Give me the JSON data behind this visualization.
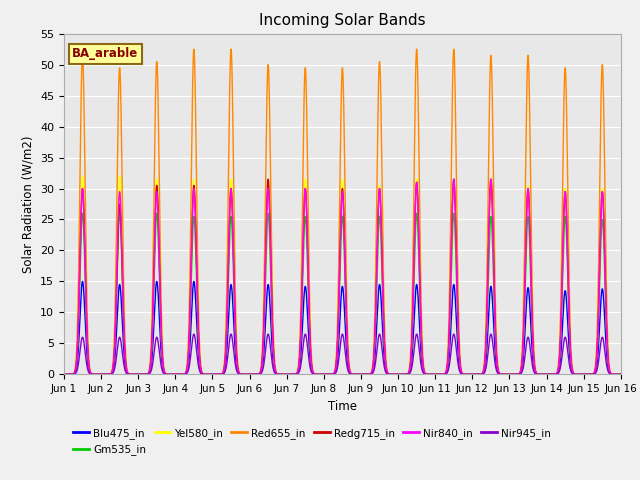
{
  "title": "Incoming Solar Bands",
  "xlabel": "Time",
  "ylabel": "Solar Radiation (W/m2)",
  "annotation": "BA_arable",
  "x_tick_labels": [
    "Jun 1",
    "Jun 2",
    "Jun 3",
    "Jun 4",
    "Jun 5",
    "Jun 6",
    "Jun 7",
    "Jun 8",
    "Jun 9",
    "Jun 10",
    "Jun 11",
    "Jun 12",
    "Jun 13",
    "Jun 14",
    "Jun 15",
    "Jun 16"
  ],
  "ylim": [
    0,
    55
  ],
  "num_days": 15,
  "points_per_day": 288,
  "series_colors": {
    "Blu475_in": "#0000ff",
    "Gm535_in": "#00cc00",
    "Yel580_in": "#ffff00",
    "Red655_in": "#ff8800",
    "Redg715_in": "#cc0000",
    "Nir840_in": "#ff00ff",
    "Nir945_in": "#8800cc"
  },
  "legend_order": [
    "Blu475_in",
    "Gm535_in",
    "Yel580_in",
    "Red655_in",
    "Redg715_in",
    "Nir840_in",
    "Nir945_in"
  ],
  "day_peaks": {
    "Blu475_in": [
      15.0,
      14.5,
      15.0,
      15.0,
      14.5,
      14.5,
      14.2,
      14.2,
      14.5,
      14.5,
      14.5,
      14.2,
      14.0,
      13.5,
      13.8
    ],
    "Gm535_in": [
      26.0,
      26.0,
      26.0,
      25.5,
      25.5,
      26.0,
      25.5,
      25.5,
      25.5,
      26.0,
      26.0,
      25.5,
      25.5,
      25.5,
      25.0
    ],
    "Yel580_in": [
      32.0,
      32.0,
      31.5,
      31.5,
      31.5,
      30.5,
      31.5,
      31.5,
      30.5,
      31.5,
      31.0,
      31.5,
      30.5,
      30.0,
      30.0
    ],
    "Red655_in": [
      51.5,
      49.5,
      50.5,
      52.5,
      52.5,
      50.0,
      49.5,
      49.5,
      50.5,
      52.5,
      52.5,
      51.5,
      51.5,
      49.5,
      50.0
    ],
    "Redg715_in": [
      30.0,
      27.5,
      30.5,
      30.5,
      30.0,
      31.5,
      30.0,
      30.0,
      30.0,
      31.0,
      31.5,
      31.5,
      30.0,
      29.5,
      29.5
    ],
    "Nir840_in": [
      30.0,
      29.5,
      29.5,
      30.0,
      30.0,
      30.0,
      30.0,
      29.5,
      30.0,
      31.0,
      31.5,
      31.5,
      30.0,
      29.5,
      29.5
    ],
    "Nir945_in": [
      6.0,
      6.0,
      6.0,
      6.5,
      6.5,
      6.5,
      6.5,
      6.5,
      6.5,
      6.5,
      6.5,
      6.5,
      6.0,
      6.0,
      6.0
    ]
  },
  "peak_sigma": 0.07,
  "fig_bg": "#f0f0f0",
  "ax_bg": "#e8e8e8",
  "grid_color": "#ffffff",
  "linewidth": 1.0
}
